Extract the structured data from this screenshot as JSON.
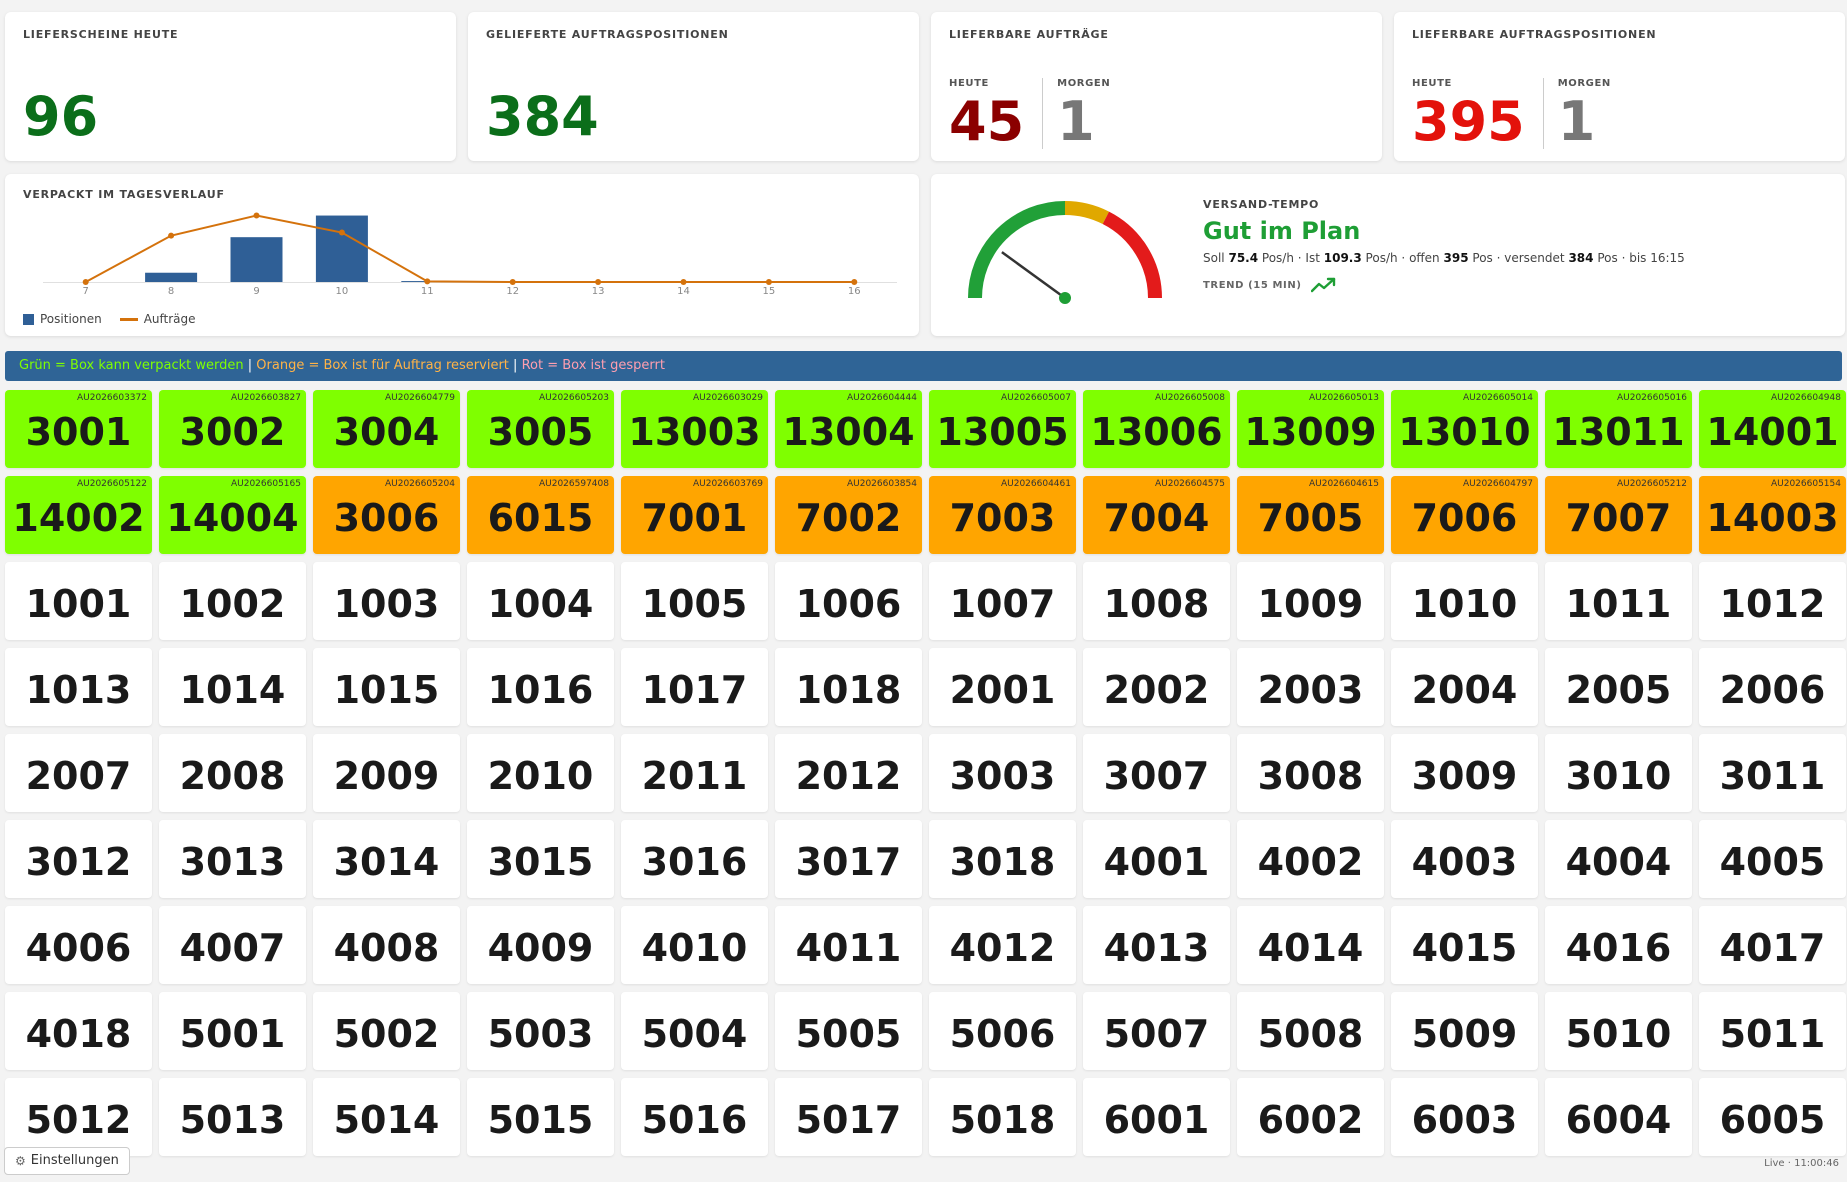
{
  "kpis": {
    "lieferscheine": {
      "title": "Lieferscheine heute",
      "value": "96",
      "color": "#0b6e1a"
    },
    "positionen": {
      "title": "Gelieferte Auftragspositionen",
      "value": "384",
      "color": "#0b6e1a"
    },
    "auftraege": {
      "title": "Lieferbare Aufträge",
      "heute_label": "Heute",
      "heute_value": "45",
      "heute_color": "#8b0000",
      "morgen_label": "Morgen",
      "morgen_value": "1",
      "morgen_color": "#777777"
    },
    "auftragspositionen": {
      "title": "Lieferbare Auftragspositionen",
      "heute_label": "Heute",
      "heute_value": "395",
      "heute_color": "#e3120b",
      "morgen_label": "Morgen",
      "morgen_value": "1",
      "morgen_color": "#777777"
    }
  },
  "chart_data": {
    "type": "bar",
    "title": "Verpackt im Tagesverlauf",
    "categories": [
      "7",
      "8",
      "9",
      "10",
      "11",
      "12",
      "13",
      "14",
      "15",
      "16"
    ],
    "series": [
      {
        "name": "Positionen",
        "kind": "bar",
        "color": "#2f5f96",
        "values": [
          0,
          30,
          145,
          215,
          3,
          0,
          0,
          0,
          0,
          0
        ]
      },
      {
        "name": "Aufträge",
        "kind": "line",
        "color": "#d4720c",
        "values": [
          0,
          150,
          215,
          160,
          2,
          0,
          0,
          0,
          0,
          0
        ]
      }
    ],
    "ylim": [
      0,
      220
    ],
    "grid": false,
    "legend": "bottom-left"
  },
  "gauge": {
    "label": "Versand-Tempo",
    "status": "Gut im Plan",
    "status_color": "#1e9e35",
    "soll_label": "Soll",
    "soll": "75.4",
    "ist_label": "Ist",
    "ist": "109.3",
    "unit": "Pos/h",
    "offen_label": "offen",
    "offen": "395",
    "versendet_label": "versendet",
    "versendet": "384",
    "pos_label": "Pos",
    "bis": "bis 16:15",
    "trend_label": "Trend (15 min)",
    "trend_icon": "trending-up-icon",
    "needle_fraction": 0.2
  },
  "legend_banner": {
    "green": "Grün = Box kann verpackt werden",
    "orange": "Orange = Box ist für Auftrag reserviert",
    "red": "Rot = Box ist gesperrt",
    "separator": "|",
    "green_color": "#7fff00",
    "orange_color": "#ffb347",
    "red_color": "#ff9fb0"
  },
  "boxes": [
    {
      "n": "3001",
      "order": "AU2026603372",
      "status": "green"
    },
    {
      "n": "3002",
      "order": "AU2026603827",
      "status": "green"
    },
    {
      "n": "3004",
      "order": "AU2026604779",
      "status": "green"
    },
    {
      "n": "3005",
      "order": "AU2026605203",
      "status": "green"
    },
    {
      "n": "13003",
      "order": "AU2026603029",
      "status": "green"
    },
    {
      "n": "13004",
      "order": "AU2026604444",
      "status": "green"
    },
    {
      "n": "13005",
      "order": "AU2026605007",
      "status": "green"
    },
    {
      "n": "13006",
      "order": "AU2026605008",
      "status": "green"
    },
    {
      "n": "13009",
      "order": "AU2026605013",
      "status": "green"
    },
    {
      "n": "13010",
      "order": "AU2026605014",
      "status": "green"
    },
    {
      "n": "13011",
      "order": "AU2026605016",
      "status": "green"
    },
    {
      "n": "14001",
      "order": "AU2026604948",
      "status": "green"
    },
    {
      "n": "14002",
      "order": "AU2026605122",
      "status": "green"
    },
    {
      "n": "14004",
      "order": "AU2026605165",
      "status": "green"
    },
    {
      "n": "3006",
      "order": "AU2026605204",
      "status": "orange"
    },
    {
      "n": "6015",
      "order": "AU2026597408",
      "status": "orange"
    },
    {
      "n": "7001",
      "order": "AU2026603769",
      "status": "orange"
    },
    {
      "n": "7002",
      "order": "AU2026603854",
      "status": "orange"
    },
    {
      "n": "7003",
      "order": "AU2026604461",
      "status": "orange"
    },
    {
      "n": "7004",
      "order": "AU2026604575",
      "status": "orange"
    },
    {
      "n": "7005",
      "order": "AU2026604615",
      "status": "orange"
    },
    {
      "n": "7006",
      "order": "AU2026604797",
      "status": "orange"
    },
    {
      "n": "7007",
      "order": "AU2026605212",
      "status": "orange"
    },
    {
      "n": "14003",
      "order": "AU2026605154",
      "status": "orange"
    },
    {
      "n": "1001"
    },
    {
      "n": "1002"
    },
    {
      "n": "1003"
    },
    {
      "n": "1004"
    },
    {
      "n": "1005"
    },
    {
      "n": "1006"
    },
    {
      "n": "1007"
    },
    {
      "n": "1008"
    },
    {
      "n": "1009"
    },
    {
      "n": "1010"
    },
    {
      "n": "1011"
    },
    {
      "n": "1012"
    },
    {
      "n": "1013"
    },
    {
      "n": "1014"
    },
    {
      "n": "1015"
    },
    {
      "n": "1016"
    },
    {
      "n": "1017"
    },
    {
      "n": "1018"
    },
    {
      "n": "2001"
    },
    {
      "n": "2002"
    },
    {
      "n": "2003"
    },
    {
      "n": "2004"
    },
    {
      "n": "2005"
    },
    {
      "n": "2006"
    },
    {
      "n": "2007"
    },
    {
      "n": "2008"
    },
    {
      "n": "2009"
    },
    {
      "n": "2010"
    },
    {
      "n": "2011"
    },
    {
      "n": "2012"
    },
    {
      "n": "3003"
    },
    {
      "n": "3007"
    },
    {
      "n": "3008"
    },
    {
      "n": "3009"
    },
    {
      "n": "3010"
    },
    {
      "n": "3011"
    },
    {
      "n": "3012"
    },
    {
      "n": "3013"
    },
    {
      "n": "3014"
    },
    {
      "n": "3015"
    },
    {
      "n": "3016"
    },
    {
      "n": "3017"
    },
    {
      "n": "3018"
    },
    {
      "n": "4001"
    },
    {
      "n": "4002"
    },
    {
      "n": "4003"
    },
    {
      "n": "4004"
    },
    {
      "n": "4005"
    },
    {
      "n": "4006"
    },
    {
      "n": "4007"
    },
    {
      "n": "4008"
    },
    {
      "n": "4009"
    },
    {
      "n": "4010"
    },
    {
      "n": "4011"
    },
    {
      "n": "4012"
    },
    {
      "n": "4013"
    },
    {
      "n": "4014"
    },
    {
      "n": "4015"
    },
    {
      "n": "4016"
    },
    {
      "n": "4017"
    },
    {
      "n": "4018"
    },
    {
      "n": "5001"
    },
    {
      "n": "5002"
    },
    {
      "n": "5003"
    },
    {
      "n": "5004"
    },
    {
      "n": "5005"
    },
    {
      "n": "5006"
    },
    {
      "n": "5007"
    },
    {
      "n": "5008"
    },
    {
      "n": "5009"
    },
    {
      "n": "5010"
    },
    {
      "n": "5011"
    },
    {
      "n": "5012"
    },
    {
      "n": "5013"
    },
    {
      "n": "5014"
    },
    {
      "n": "5015"
    },
    {
      "n": "5016"
    },
    {
      "n": "5017"
    },
    {
      "n": "5018"
    },
    {
      "n": "6001"
    },
    {
      "n": "6002"
    },
    {
      "n": "6003"
    },
    {
      "n": "6004"
    },
    {
      "n": "6005"
    }
  ],
  "footer": {
    "settings_icon": "gear-icon",
    "settings_label": "Einstellungen",
    "live_status": "Live · 11:00:46"
  }
}
